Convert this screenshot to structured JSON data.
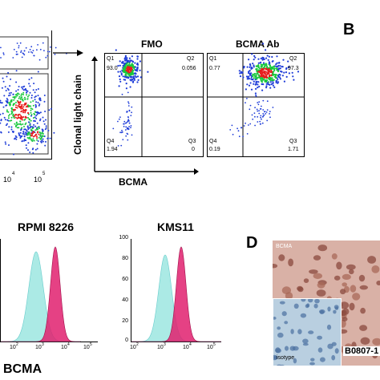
{
  "panel_letters": {
    "b": "B",
    "d": "D"
  },
  "top_left": {
    "axis_ticks": [
      "10",
      "4",
      "10",
      "5"
    ]
  },
  "scatter_labels": {
    "fmo_title": "FMO",
    "bcma_ab_title": "BCMA Ab",
    "y_axis_label": "Clonal light chain",
    "x_axis_label": "BCMA"
  },
  "fmo_quadrants": {
    "q1_name": "Q1",
    "q1_value": "93.0",
    "q2_name": "Q2",
    "q2_value": "0.056",
    "q3_name": "Q3",
    "q3_value": "0",
    "q4_name": "Q4",
    "q4_value": "1.94"
  },
  "bcma_quadrants": {
    "q1_name": "Q1",
    "q1_value": "0.77",
    "q2_name": "Q2",
    "q2_value": "97.3",
    "q3_name": "Q3",
    "q3_value": "1.71",
    "q4_name": "Q4",
    "q4_value": "0.19"
  },
  "histograms": {
    "rpmi_title": "RPMI 8226",
    "kms_title": "KMS11",
    "x_axis_label": "BCMA",
    "y_ticks": [
      "100",
      "80",
      "60",
      "40",
      "20",
      "0"
    ],
    "x_ticks": [
      "10",
      "2",
      "10",
      "3",
      "10",
      "4",
      "10",
      "5"
    ]
  },
  "ihc": {
    "main_label": "BCMA",
    "inset_label": "isotype",
    "sample_id": "B0807-1"
  },
  "colors": {
    "isotype_fill": "#8fe3dc",
    "bcma_fill": "#e0206e",
    "scatter_low": "#1e3cd8",
    "scatter_mid": "#18c83c",
    "scatter_high": "#e81c1c",
    "ihc_bg": "#d9b1a6",
    "inset_bg": "#b9cfe0"
  }
}
